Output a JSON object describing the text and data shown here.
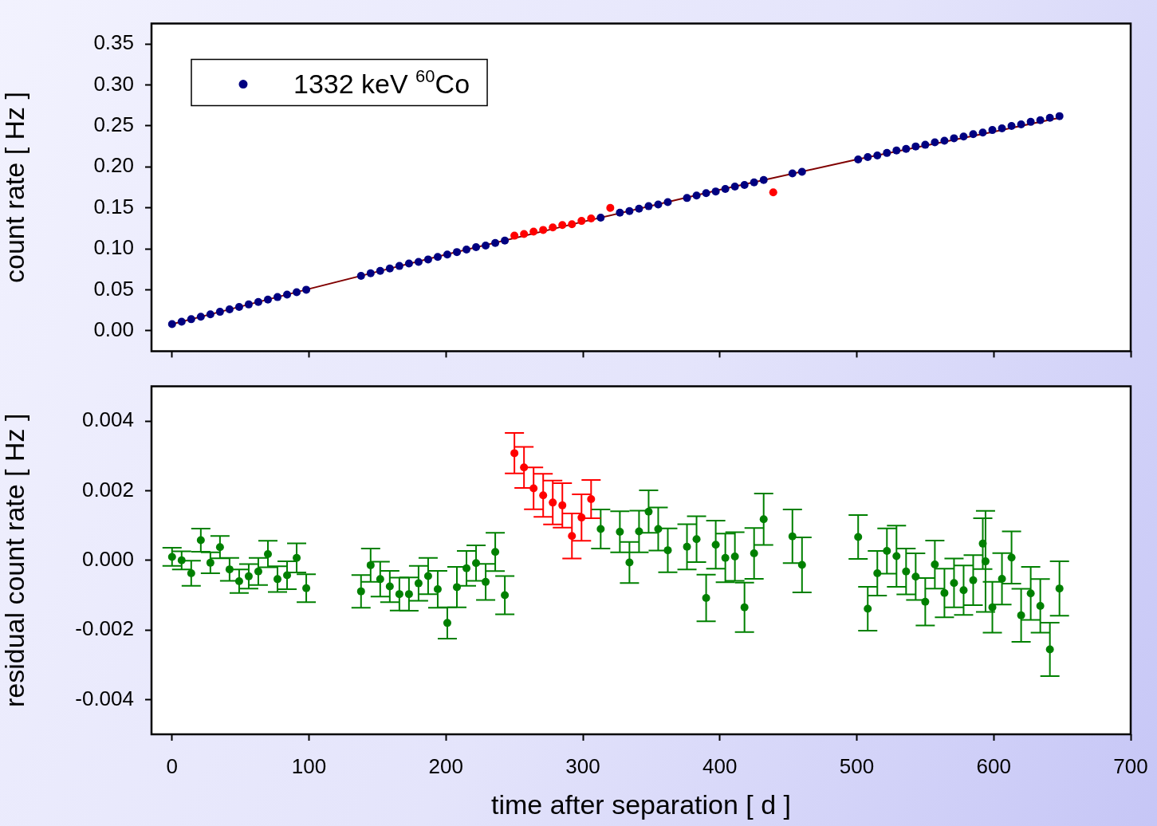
{
  "chart_data": [
    {
      "type": "scatter",
      "ylabel": "count rate [ Hz ]",
      "xlim": [
        -15,
        700
      ],
      "xticks": [
        0,
        100,
        200,
        300,
        400,
        500,
        600,
        700
      ],
      "ylim": [
        -0.025,
        0.375
      ],
      "yticks": [
        {
          "value": 0,
          "label": "0.00"
        },
        0.05,
        {
          "value": 0.1,
          "label": "0.10"
        },
        0.15,
        {
          "value": 0.2,
          "label": "0.20"
        },
        0.25,
        {
          "value": 0.3,
          "label": "0.30"
        },
        0.35
      ],
      "tick_labels": "y",
      "legend": "top left",
      "marker": "circle",
      "series": [
        {
          "type": "line",
          "marker": "none",
          "color": "#800000",
          "x": [
            0,
            100,
            200,
            300,
            400,
            500,
            600,
            648
          ],
          "values": [
            0.008,
            0.051,
            0.093,
            0.133,
            0.172,
            0.209,
            0.243,
            0.26
          ]
        },
        {
          "name": "1332 keV $^{60}$Co",
          "color": "#000080",
          "x": [
            0,
            7,
            14,
            21,
            28,
            35,
            42,
            49,
            56,
            63,
            70,
            77,
            84,
            91,
            98,
            138,
            145,
            152,
            159,
            166,
            173,
            180,
            187,
            194,
            201,
            208,
            215,
            222,
            229,
            236,
            243,
            313,
            327,
            334,
            341,
            348,
            355,
            362,
            376,
            383,
            390,
            397,
            404,
            411,
            418,
            425,
            432,
            453,
            460,
            501,
            508,
            515,
            522,
            529,
            536,
            543,
            550,
            557,
            564,
            571,
            578,
            585,
            592,
            594,
            599,
            606,
            613,
            620,
            627,
            634,
            641,
            648
          ],
          "values": [
            0.008,
            0.011,
            0.014,
            0.017,
            0.02,
            0.023,
            0.026,
            0.029,
            0.032,
            0.035,
            0.038,
            0.041,
            0.044,
            0.047,
            0.05,
            0.067,
            0.07,
            0.073,
            0.076,
            0.079,
            0.082,
            0.084,
            0.087,
            0.09,
            0.093,
            0.096,
            0.099,
            0.102,
            0.104,
            0.107,
            0.11,
            0.138,
            0.144,
            0.146,
            0.149,
            0.152,
            0.154,
            0.157,
            0.162,
            0.165,
            0.168,
            0.17,
            0.173,
            0.176,
            0.178,
            0.181,
            0.184,
            0.192,
            0.194,
            0.209,
            0.212,
            0.214,
            0.217,
            0.22,
            0.222,
            0.225,
            0.227,
            0.23,
            0.232,
            0.235,
            0.237,
            0.24,
            0.242,
            null,
            0.245,
            0.247,
            0.25,
            0.252,
            0.255,
            0.257,
            0.26,
            0.262
          ]
        },
        {
          "color": "#ff0000",
          "x": [
            250,
            257,
            264,
            271,
            278,
            285,
            292,
            299,
            306,
            320,
            439
          ],
          "values": [
            0.116,
            0.118,
            0.121,
            0.123,
            0.126,
            0.129,
            0.13,
            0.134,
            0.137,
            0.15,
            0.169
          ]
        }
      ]
    },
    {
      "type": "scatter",
      "xlabel": "time after separation [ d ]",
      "ylabel": "residual count rate [ Hz ]",
      "xlim": [
        -15,
        700
      ],
      "xticks": [
        0,
        100,
        200,
        300,
        400,
        500,
        600,
        700
      ],
      "ylim": [
        -0.005,
        0.005
      ],
      "yticks": [
        -0.004,
        -0.002,
        {
          "value": 0,
          "label": "0.000"
        },
        0.002,
        0.004
      ],
      "marker": "circle",
      "series": [
        {
          "color": "#008000",
          "x": [
            0,
            7,
            14,
            21,
            28,
            35,
            42,
            49,
            56,
            63,
            70,
            77,
            84,
            91,
            98,
            138,
            145,
            152,
            159,
            166,
            173,
            180,
            187,
            194,
            201,
            208,
            215,
            222,
            229,
            236,
            243,
            313,
            327,
            334,
            341,
            348,
            355,
            362,
            376,
            383,
            390,
            397,
            404,
            411,
            418,
            425,
            432,
            453,
            460,
            501,
            508,
            515,
            522,
            529,
            536,
            543,
            550,
            557,
            564,
            571,
            578,
            585,
            592,
            594,
            599,
            606,
            613,
            620,
            627,
            634,
            641,
            648
          ],
          "values": [
            0.0001,
            0.0,
            -0.00037,
            0.00058,
            -7e-05,
            0.00038,
            -0.00026,
            -0.0006,
            -0.00046,
            -0.00032,
            0.00018,
            -0.00054,
            -0.00043,
            7e-05,
            -0.0008,
            -0.00089,
            -0.00014,
            -0.00054,
            -0.00075,
            -0.00097,
            -0.00097,
            -0.00066,
            -0.00045,
            -0.00083,
            -0.0018,
            -0.00077,
            -0.00023,
            -8e-05,
            -0.00062,
            0.00024,
            -0.001,
            0.0009,
            0.00082,
            -6e-05,
            0.00083,
            0.0014,
            0.0009,
            0.00029,
            0.00039,
            0.00061,
            -0.00108,
            0.00045,
            7e-05,
            0.00011,
            -0.00135,
            0.0002,
            0.00118,
            0.00069,
            -0.00013,
            0.00067,
            -0.00139,
            -0.00037,
            0.00027,
            0.00012,
            -0.00032,
            -0.00047,
            -0.00119,
            -0.00012,
            -0.00094,
            -0.00065,
            -0.00086,
            -0.00057,
            0.00048,
            -3e-05,
            -0.00135,
            -0.00053,
            8e-05,
            -0.00158,
            -0.00095,
            -0.00131,
            -0.00256,
            -0.00081
          ],
          "errors": [
            0.00026,
            0.00026,
            0.00036,
            0.00033,
            0.0003,
            0.00032,
            0.00033,
            0.00034,
            0.00035,
            0.00039,
            0.00038,
            0.00037,
            0.0004,
            0.00042,
            0.0004,
            0.00047,
            0.00048,
            0.0005,
            0.00045,
            0.00047,
            0.00048,
            0.0005,
            0.00052,
            0.00053,
            0.00045,
            0.00058,
            0.0005,
            0.00051,
            0.00052,
            0.00055,
            0.00055,
            0.00056,
            0.00059,
            0.00059,
            0.0006,
            0.00061,
            0.00062,
            0.00063,
            0.00065,
            0.00066,
            0.00067,
            0.00069,
            0.0007,
            0.0007,
            0.00071,
            0.00073,
            0.00074,
            0.00077,
            0.00079,
            0.00063,
            0.00063,
            0.00064,
            0.00065,
            0.00088,
            0.00066,
            0.00067,
            0.00068,
            0.00069,
            0.0007,
            0.0007,
            0.00071,
            0.00072,
            0.00073,
            0.00145,
            0.00073,
            0.00074,
            0.00075,
            0.00076,
            0.00076,
            0.00077,
            0.00077,
            0.00078
          ]
        },
        {
          "color": "#ff0000",
          "x": [
            250,
            257,
            264,
            271,
            278,
            285,
            292,
            299,
            306
          ],
          "values": [
            0.00308,
            0.00267,
            0.00207,
            0.00187,
            0.00166,
            0.00158,
            0.0007,
            0.00123,
            0.00176
          ],
          "errors": [
            0.00058,
            0.00059,
            0.0006,
            0.00062,
            0.00063,
            0.00064,
            0.00065,
            0.00067,
            0.00055
          ]
        }
      ]
    }
  ]
}
